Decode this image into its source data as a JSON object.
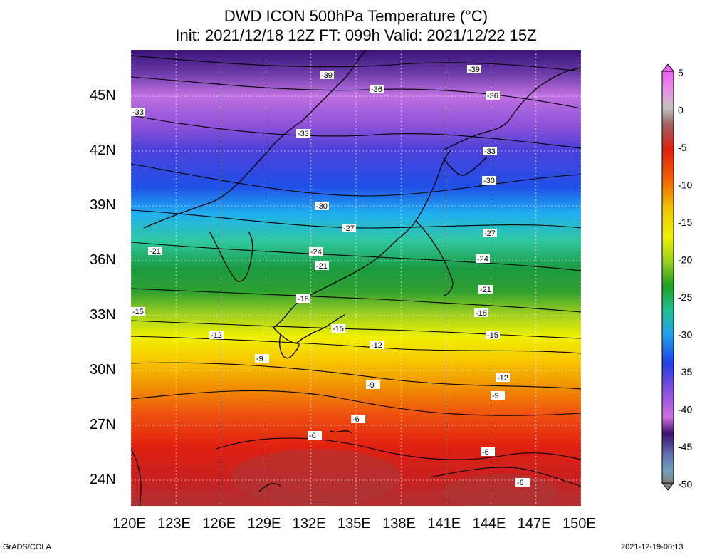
{
  "title": {
    "line1": "DWD ICON 500hPa Temperature (°C)",
    "line2": "Init: 2021/12/18 12Z  FT: 099h  Valid: 2021/12/22 15Z"
  },
  "axes": {
    "lat_labels": [
      "45N",
      "42N",
      "39N",
      "36N",
      "33N",
      "30N",
      "27N",
      "24N"
    ],
    "lon_labels": [
      "120E",
      "123E",
      "126E",
      "129E",
      "132E",
      "135E",
      "138E",
      "141E",
      "144E",
      "147E",
      "150E"
    ]
  },
  "contour_labels": [
    "-39",
    "-36",
    "-33",
    "-30",
    "-27",
    "-24",
    "-21",
    "-18",
    "-15",
    "-12",
    "-9",
    "-6"
  ],
  "colorbar": {
    "ticks": [
      "5",
      "0",
      "-5",
      "-10",
      "-15",
      "-20",
      "-25",
      "-30",
      "-35",
      "-40",
      "-45",
      "-50"
    ]
  },
  "footer": {
    "left": "GrADS/COLA",
    "right": "2021-12-19-00:13"
  }
}
